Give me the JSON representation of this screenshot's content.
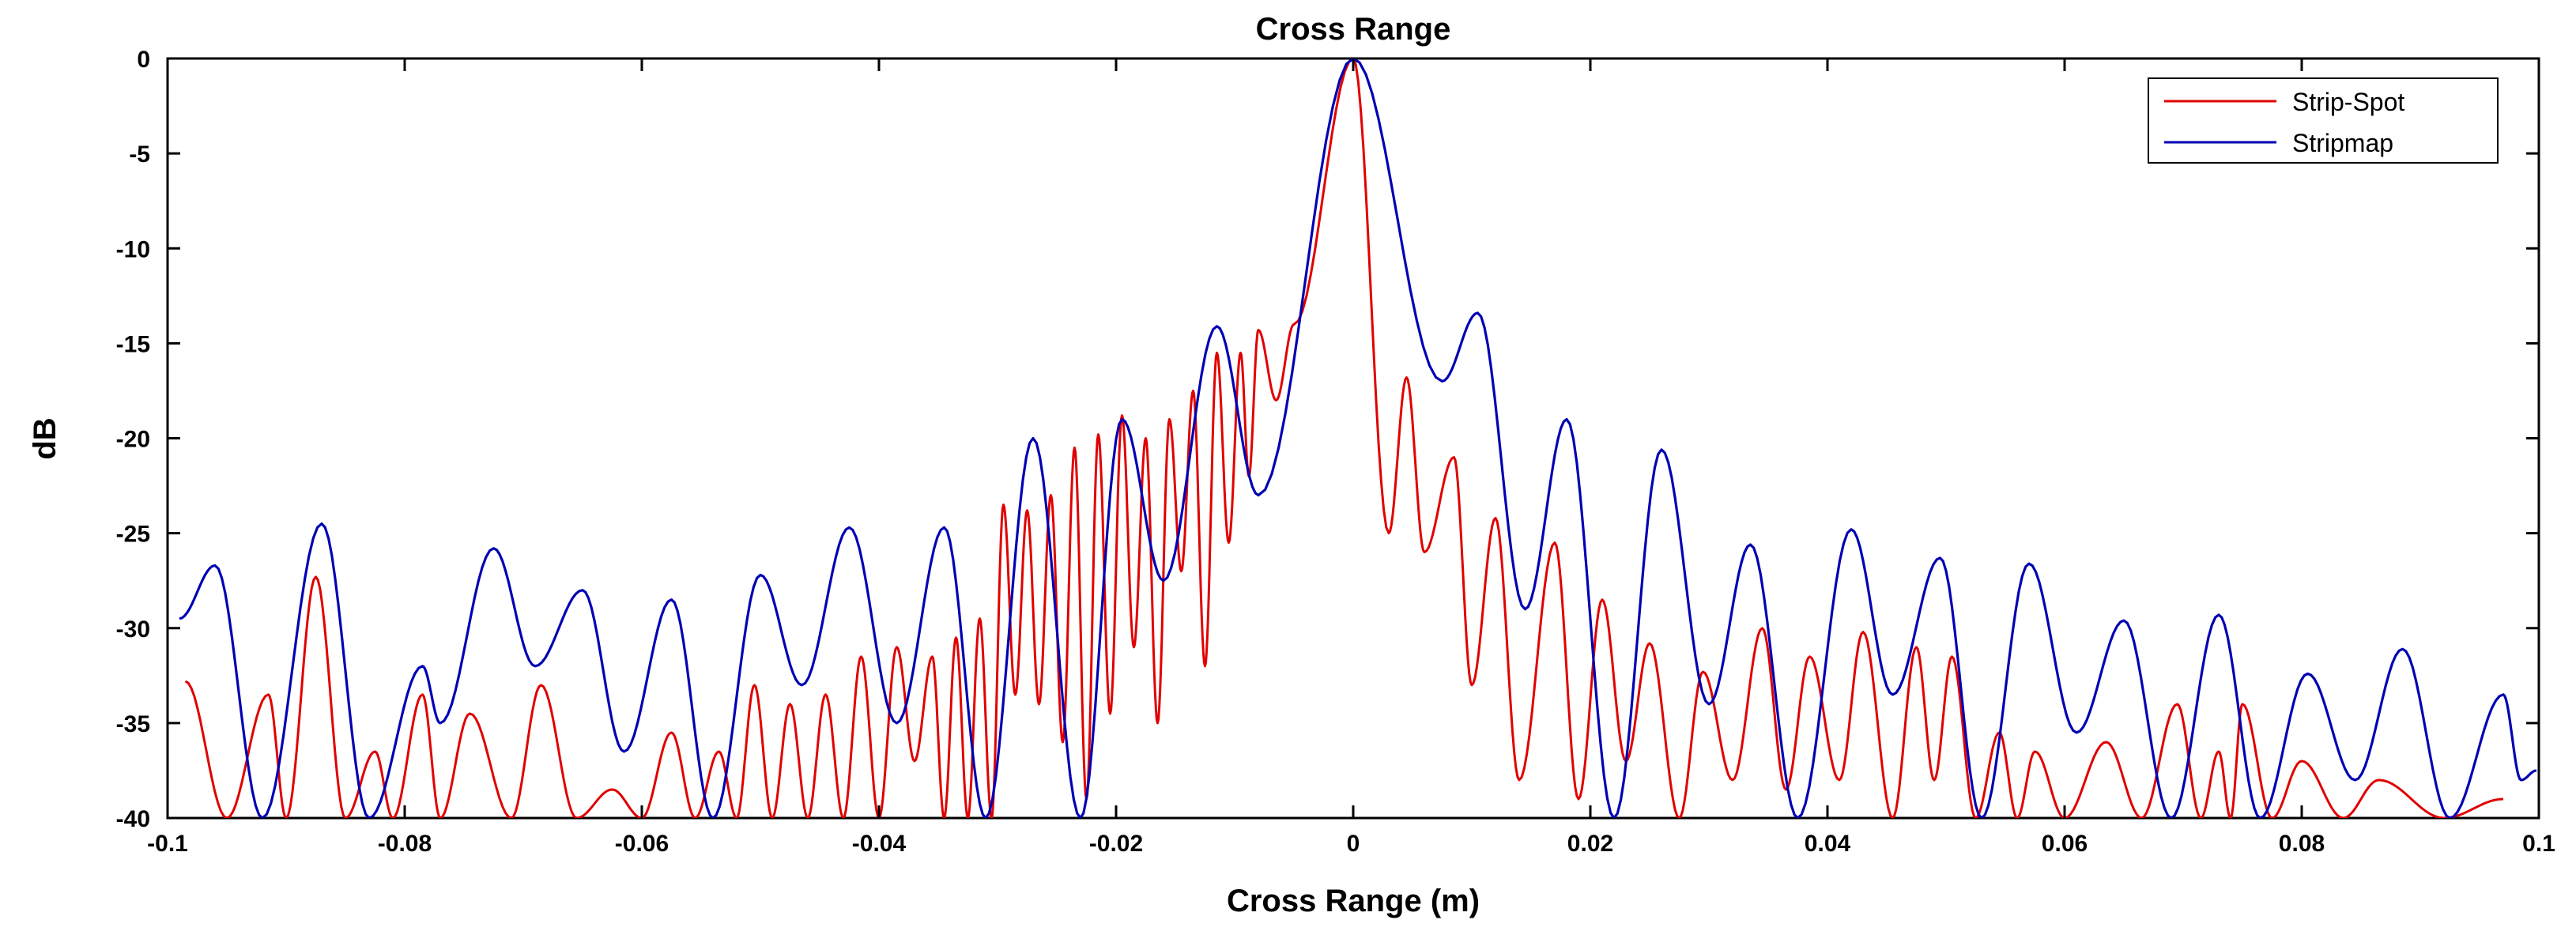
{
  "chart_data": {
    "type": "line",
    "title": "Cross Range",
    "xlabel": "Cross Range (m)",
    "ylabel": "dB",
    "xlim": [
      -0.1,
      0.1
    ],
    "ylim": [
      -40,
      0
    ],
    "xticks": [
      -0.1,
      -0.08,
      -0.06,
      -0.04,
      -0.02,
      0,
      0.02,
      0.04,
      0.06,
      0.08,
      0.1
    ],
    "xtick_labels": [
      "-0.1",
      "-0.08",
      "-0.06",
      "-0.04",
      "-0.02",
      "0",
      "0.02",
      "0.04",
      "0.06",
      "0.08",
      "0.1"
    ],
    "yticks": [
      0,
      -5,
      -10,
      -15,
      -20,
      -25,
      -30,
      -35,
      -40
    ],
    "ytick_labels": [
      "0",
      "-5",
      "-10",
      "-15",
      "-20",
      "-25",
      "-30",
      "-35",
      "-40"
    ],
    "grid": false,
    "legend_position": "top-right",
    "series": [
      {
        "name": "Strip-Spot",
        "color": "#e00000",
        "peaks": [
          [
            -0.0985,
            -32.8
          ],
          [
            -0.0915,
            -33.5
          ],
          [
            -0.0875,
            -27.3
          ],
          [
            -0.0825,
            -36.5
          ],
          [
            -0.0785,
            -33.5
          ],
          [
            -0.0745,
            -34.5
          ],
          [
            -0.0685,
            -33.0
          ],
          [
            -0.0625,
            -38.5
          ],
          [
            -0.0575,
            -35.5
          ],
          [
            -0.0535,
            -36.5
          ],
          [
            -0.0505,
            -33.0
          ],
          [
            -0.0475,
            -34.0
          ],
          [
            -0.0445,
            -33.5
          ],
          [
            -0.0415,
            -31.5
          ],
          [
            -0.0385,
            -31.0
          ],
          [
            -0.0355,
            -31.5
          ],
          [
            -0.0335,
            -30.5
          ],
          [
            -0.0315,
            -29.5
          ],
          [
            -0.0295,
            -23.5
          ],
          [
            -0.0275,
            -23.8
          ],
          [
            -0.0255,
            -23.0
          ],
          [
            -0.0235,
            -20.5
          ],
          [
            -0.0215,
            -19.8
          ],
          [
            -0.0195,
            -18.8
          ],
          [
            -0.0175,
            -20.0
          ],
          [
            -0.0155,
            -19.0
          ],
          [
            -0.0135,
            -17.5
          ],
          [
            -0.0115,
            -15.5
          ],
          [
            -0.0095,
            -15.5
          ],
          [
            -0.008,
            -14.3
          ],
          [
            -0.005,
            -14.0
          ],
          [
            0.0,
            0.0
          ],
          [
            0.0045,
            -16.8
          ],
          [
            0.0085,
            -21.0
          ],
          [
            0.012,
            -24.2
          ],
          [
            0.017,
            -25.5
          ],
          [
            0.021,
            -28.5
          ],
          [
            0.025,
            -30.8
          ],
          [
            0.0295,
            -32.3
          ],
          [
            0.0345,
            -30.0
          ],
          [
            0.0385,
            -31.5
          ],
          [
            0.043,
            -30.2
          ],
          [
            0.0475,
            -31.0
          ],
          [
            0.0505,
            -31.5
          ],
          [
            0.0545,
            -35.5
          ],
          [
            0.0575,
            -36.5
          ],
          [
            0.0635,
            -36.0
          ],
          [
            0.0695,
            -34.0
          ],
          [
            0.073,
            -36.5
          ],
          [
            0.075,
            -34.0
          ],
          [
            0.08,
            -37.0
          ],
          [
            0.0865,
            -38.0
          ],
          [
            0.097,
            -39.0
          ]
        ],
        "nulls": [
          [
            -0.095,
            -40.0
          ],
          [
            -0.09,
            -40.0
          ],
          [
            -0.085,
            -40.0
          ],
          [
            -0.081,
            -40.0
          ],
          [
            -0.077,
            -40.0
          ],
          [
            -0.071,
            -40.0
          ],
          [
            -0.0655,
            -40.0
          ],
          [
            -0.06,
            -40.0
          ],
          [
            -0.0555,
            -40.0
          ],
          [
            -0.052,
            -40.0
          ],
          [
            -0.049,
            -40.0
          ],
          [
            -0.046,
            -40.0
          ],
          [
            -0.043,
            -40.0
          ],
          [
            -0.04,
            -40.0
          ],
          [
            -0.037,
            -37.0
          ],
          [
            -0.0345,
            -40.0
          ],
          [
            -0.0325,
            -40.0
          ],
          [
            -0.0305,
            -40.0
          ],
          [
            -0.0285,
            -33.5
          ],
          [
            -0.0265,
            -34.0
          ],
          [
            -0.0245,
            -36.0
          ],
          [
            -0.0225,
            -39.0
          ],
          [
            -0.0205,
            -34.5
          ],
          [
            -0.0185,
            -31.0
          ],
          [
            -0.0165,
            -35.0
          ],
          [
            -0.0145,
            -27.0
          ],
          [
            -0.0125,
            -32.0
          ],
          [
            -0.0105,
            -25.5
          ],
          [
            -0.0088,
            -22.0
          ],
          [
            -0.0065,
            -18.0
          ],
          [
            0.003,
            -25.0
          ],
          [
            0.006,
            -26.0
          ],
          [
            0.01,
            -33.0
          ],
          [
            0.014,
            -38.0
          ],
          [
            0.019,
            -39.0
          ],
          [
            0.023,
            -37.0
          ],
          [
            0.0275,
            -40.0
          ],
          [
            0.032,
            -38.0
          ],
          [
            0.0365,
            -38.5
          ],
          [
            0.041,
            -38.0
          ],
          [
            0.0455,
            -40.0
          ],
          [
            0.049,
            -38.0
          ],
          [
            0.0525,
            -40.0
          ],
          [
            0.056,
            -40.0
          ],
          [
            0.06,
            -40.0
          ],
          [
            0.0665,
            -40.0
          ],
          [
            0.0715,
            -40.0
          ],
          [
            0.074,
            -40.0
          ],
          [
            0.0775,
            -40.0
          ],
          [
            0.0835,
            -40.0
          ],
          [
            0.092,
            -40.0
          ]
        ]
      },
      {
        "name": "Stripmap",
        "color": "#0000b4",
        "peaks": [
          [
            -0.096,
            -26.7
          ],
          [
            -0.087,
            -24.5
          ],
          [
            -0.0785,
            -32.0
          ],
          [
            -0.0725,
            -25.8
          ],
          [
            -0.065,
            -28.0
          ],
          [
            -0.0575,
            -28.5
          ],
          [
            -0.05,
            -27.2
          ],
          [
            -0.0425,
            -24.7
          ],
          [
            -0.0345,
            -24.7
          ],
          [
            -0.027,
            -20.0
          ],
          [
            -0.0195,
            -19.0
          ],
          [
            -0.0115,
            -14.1
          ],
          [
            0.0,
            0.0
          ],
          [
            0.0105,
            -13.4
          ],
          [
            0.018,
            -19.0
          ],
          [
            0.026,
            -20.6
          ],
          [
            0.0335,
            -25.6
          ],
          [
            0.042,
            -24.8
          ],
          [
            0.0495,
            -26.3
          ],
          [
            0.057,
            -26.6
          ],
          [
            0.065,
            -29.6
          ],
          [
            0.073,
            -29.3
          ],
          [
            0.0805,
            -32.4
          ],
          [
            0.0885,
            -31.1
          ],
          [
            0.097,
            -33.5
          ],
          [
            0.0998,
            -37.5
          ]
        ],
        "nulls": [
          [
            -0.099,
            -29.5
          ],
          [
            -0.092,
            -40.0
          ],
          [
            -0.083,
            -40.0
          ],
          [
            -0.077,
            -35.0
          ],
          [
            -0.069,
            -32.0
          ],
          [
            -0.0615,
            -36.5
          ],
          [
            -0.054,
            -40.0
          ],
          [
            -0.0465,
            -33.0
          ],
          [
            -0.0385,
            -35.0
          ],
          [
            -0.031,
            -40.0
          ],
          [
            -0.023,
            -40.0
          ],
          [
            -0.016,
            -27.5
          ],
          [
            -0.008,
            -23.0
          ],
          [
            0.0075,
            -17.0
          ],
          [
            0.0145,
            -29.0
          ],
          [
            0.022,
            -40.0
          ],
          [
            0.03,
            -34.0
          ],
          [
            0.0375,
            -40.0
          ],
          [
            0.0455,
            -33.5
          ],
          [
            0.053,
            -40.0
          ],
          [
            0.061,
            -35.5
          ],
          [
            0.069,
            -40.0
          ],
          [
            0.0765,
            -40.0
          ],
          [
            0.0845,
            -38.0
          ],
          [
            0.0925,
            -40.0
          ],
          [
            0.0985,
            -38.0
          ]
        ]
      }
    ]
  }
}
